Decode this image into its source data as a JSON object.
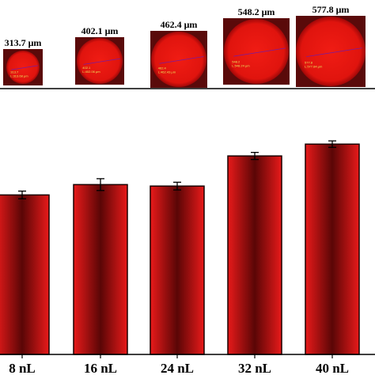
{
  "chart_data": {
    "type": "bar",
    "categories": [
      "8 nL",
      "16 nL",
      "24 nL",
      "32 nL",
      "40 nL"
    ],
    "values": [
      540,
      575,
      570,
      672,
      712
    ],
    "errors": [
      13,
      20,
      13,
      12,
      11
    ],
    "ylim": [
      0,
      900
    ],
    "title": "",
    "xlabel": "",
    "ylabel": "",
    "grid": false,
    "bar_color": "#d81818",
    "bar_edge_color": "#1a0000",
    "droplet_images": [
      {
        "label": "313.7 μm",
        "measure_text": [
          "313.7",
          "L:313.68 μm"
        ]
      },
      {
        "label": "402.1 μm",
        "measure_text": [
          "402.1",
          "L:402.06 μm"
        ]
      },
      {
        "label": "462.4 μm",
        "measure_text": [
          "462.4",
          "L:462.43 μm"
        ]
      },
      {
        "label": "548.2 μm",
        "measure_text": [
          "548.2",
          "L:548.24 μm"
        ]
      },
      {
        "label": "577.8 μm",
        "measure_text": [
          "577.8",
          "L:577.84 μm"
        ]
      }
    ]
  }
}
